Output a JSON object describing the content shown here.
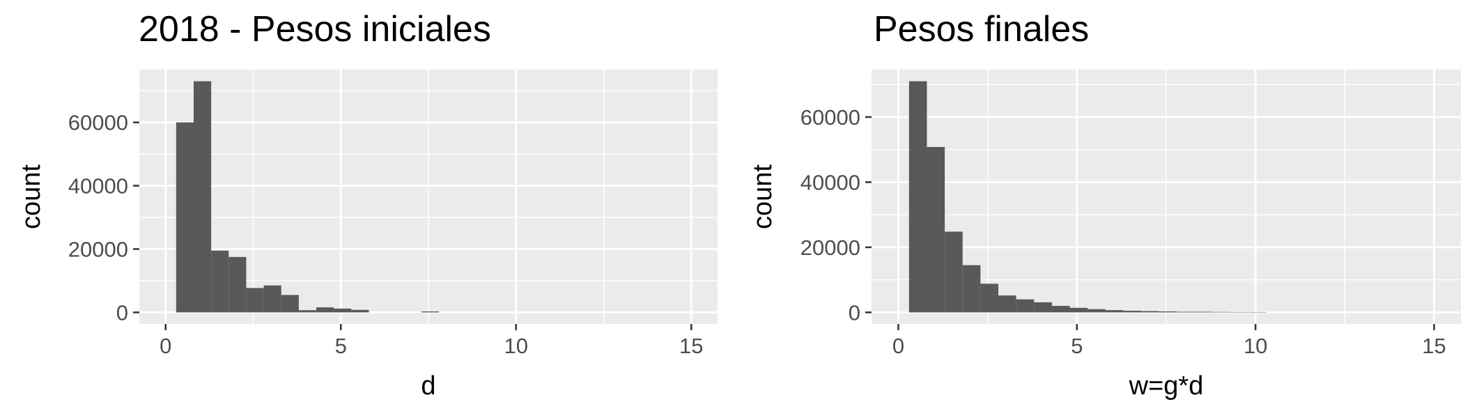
{
  "chart_data": [
    {
      "type": "bar",
      "title": "2018 - Pesos iniciales",
      "xlabel": "d",
      "ylabel": "count",
      "xlim": [
        -0.75,
        15.75
      ],
      "ylim": [
        -3650,
        76650
      ],
      "x_ticks": [
        0,
        5,
        10,
        15
      ],
      "x_tick_labels": [
        "0",
        "5",
        "10",
        "15"
      ],
      "y_ticks": [
        0,
        20000,
        40000,
        60000
      ],
      "y_tick_labels": [
        "0",
        "20000",
        "40000",
        "60000"
      ],
      "grid": true,
      "bin_width": 0.5,
      "bin_start": 0.3,
      "bar_color": "#595959",
      "panel_background": "#ebebeb",
      "values": [
        60000,
        73000,
        19500,
        17500,
        7700,
        8500,
        5500,
        700,
        1600,
        1200,
        800,
        0,
        0,
        0,
        300,
        0,
        0,
        0,
        0,
        0,
        0,
        0,
        0,
        0,
        0,
        0,
        0,
        0,
        0
      ]
    },
    {
      "type": "bar",
      "title": "Pesos finales",
      "xlabel": "w=g*d",
      "ylabel": "count",
      "xlim": [
        -0.75,
        15.75
      ],
      "ylim": [
        -3550,
        74550
      ],
      "x_ticks": [
        0,
        5,
        10,
        15
      ],
      "x_tick_labels": [
        "0",
        "5",
        "10",
        "15"
      ],
      "y_ticks": [
        0,
        20000,
        40000,
        60000
      ],
      "y_tick_labels": [
        "0",
        "20000",
        "40000",
        "60000"
      ],
      "grid": true,
      "bin_width": 0.5,
      "bin_start": 0.3,
      "bar_color": "#595959",
      "panel_background": "#ebebeb",
      "values": [
        71000,
        50800,
        24800,
        14500,
        8800,
        5200,
        4000,
        3100,
        2000,
        1400,
        1000,
        700,
        500,
        400,
        300,
        200,
        200,
        150,
        100,
        100,
        0,
        0,
        0,
        0,
        0,
        0,
        0,
        0,
        0
      ]
    }
  ]
}
